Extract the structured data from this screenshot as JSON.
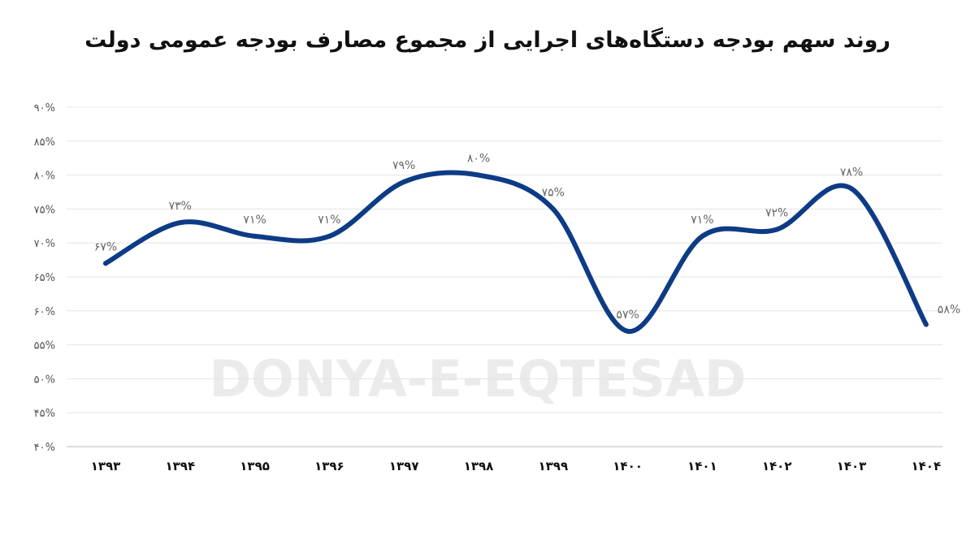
{
  "chart_data": {
    "type": "line",
    "title": "روند سهم بودجه دستگاه‌های اجرایی از مجموع مصارف بودجه عمومی دولت",
    "categories": [
      "۱۳۹۳",
      "۱۳۹۴",
      "۱۳۹۵",
      "۱۳۹۶",
      "۱۳۹۷",
      "۱۳۹۸",
      "۱۳۹۹",
      "۱۴۰۰",
      "۱۴۰۱",
      "۱۴۰۲",
      "۱۴۰۳",
      "۱۴۰۴"
    ],
    "series": [
      {
        "values": [
          67,
          73,
          71,
          71,
          79,
          80,
          75,
          57,
          71,
          72,
          78,
          58
        ]
      }
    ],
    "data_labels": [
      "۶۷%",
      "۷۳%",
      "۷۱%",
      "۷۱%",
      "۷۹%",
      "۸۰%",
      "۷۵%",
      "۵۷%",
      "۷۱%",
      "۷۲%",
      "۷۸%",
      "۵۸%"
    ],
    "ylim": [
      40,
      90
    ],
    "y_ticks": [
      40,
      45,
      50,
      55,
      60,
      65,
      70,
      75,
      80,
      85,
      90
    ],
    "y_tick_labels": [
      "۴۰%",
      "۴۵%",
      "۵۰%",
      "۵۵%",
      "۶۰%",
      "۶۵%",
      "۷۰%",
      "۷۵%",
      "۸۰%",
      "۸۵%",
      "۹۰%"
    ],
    "grid": true,
    "line_color": "#0d3b86",
    "watermark": "DONYA-E-EQTESAD"
  }
}
